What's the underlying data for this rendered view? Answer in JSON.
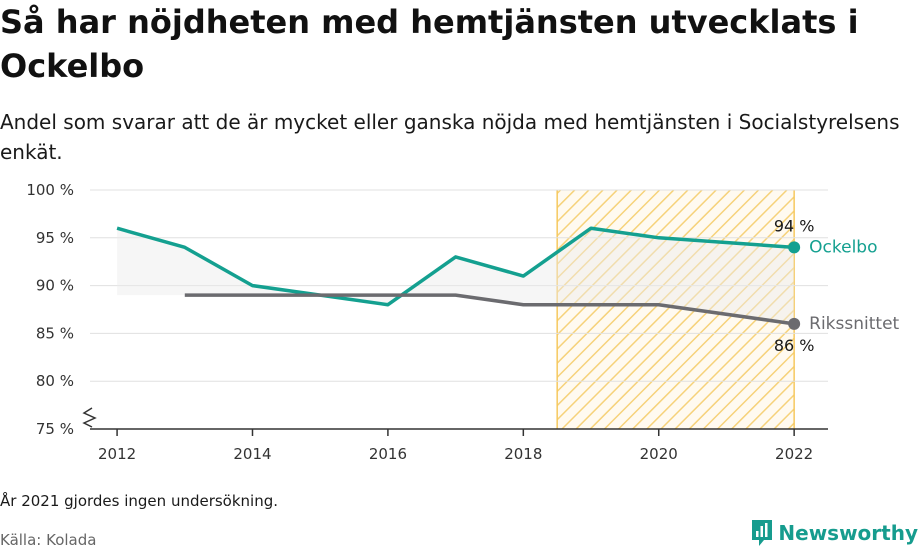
{
  "title": "Så har nöjdheten med hemtjänsten utvecklats i Ockelbo",
  "subtitle": "Andel som svarar att de är mycket eller ganska nöjda med hemtjänsten i Socialstyrelsens enkät.",
  "note": "År 2021 gjordes ingen undersökning.",
  "source": "Källa: Kolada",
  "logo": {
    "text": "Newsworthy"
  },
  "chart_data": {
    "type": "line",
    "ylim": [
      75,
      100
    ],
    "xlim": [
      2011.6,
      2022.5
    ],
    "y_ticks": [
      75,
      80,
      85,
      90,
      95,
      100
    ],
    "y_tick_labels": [
      "75 %",
      "80 %",
      "85 %",
      "90 %",
      "95 %",
      "100 %"
    ],
    "x_ticks": [
      2012,
      2014,
      2016,
      2018,
      2020,
      2022
    ],
    "x_tick_labels": [
      "2012",
      "2014",
      "2016",
      "2018",
      "2020",
      "2022"
    ],
    "highlight_period": [
      2018.5,
      2022
    ],
    "grid": true,
    "series": [
      {
        "name": "Ockelbo",
        "color": "#14a090",
        "x": [
          2012,
          2013,
          2014,
          2015,
          2016,
          2017,
          2018,
          2019,
          2020,
          2022
        ],
        "values": [
          96,
          94,
          90,
          89,
          88,
          93,
          91,
          96,
          95,
          94
        ],
        "end_label": "94 %"
      },
      {
        "name": "Rikssnittet",
        "color": "#6b6b6f",
        "x": [
          2013,
          2014,
          2015,
          2016,
          2017,
          2018,
          2019,
          2020,
          2022
        ],
        "values": [
          89,
          89,
          89,
          89,
          89,
          88,
          88,
          88,
          86
        ],
        "end_label": "86 %"
      }
    ]
  }
}
